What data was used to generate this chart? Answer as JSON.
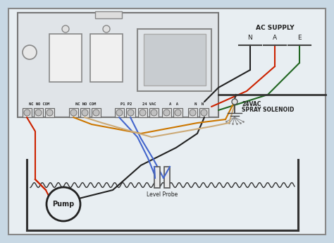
{
  "bg_color": "#c8d8e4",
  "inner_bg": "#e8eef2",
  "border_color": "#666666",
  "wire_colors": {
    "red": "#cc2200",
    "black": "#222222",
    "blue": "#4466cc",
    "green": "#226622",
    "orange": "#cc7700",
    "tan": "#ccaa77"
  },
  "labels": {
    "ac_supply": "AC SUPPLY",
    "n": "N",
    "a": "A",
    "e": "E",
    "solenoid_line1": "24VAC",
    "solenoid_line2": "SPRAY SOLENOID",
    "pump": "Pump",
    "level_probe": "Level Probe",
    "term1": "NC NO COM",
    "term2": "NC NO COM",
    "term3": "P1 P2",
    "term4": "24 VAC",
    "term5": "A  A",
    "term6": "N  N"
  },
  "figsize": [
    4.74,
    3.44
  ],
  "dpi": 100
}
